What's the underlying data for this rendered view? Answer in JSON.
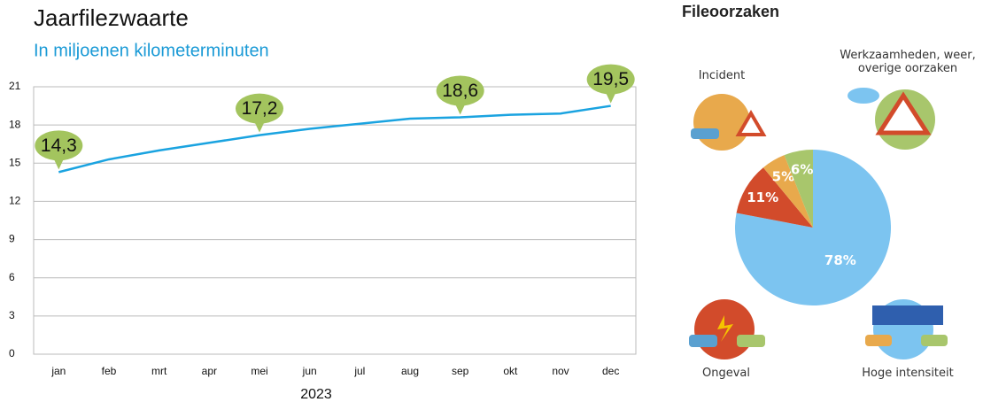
{
  "chart_data": [
    {
      "type": "line",
      "title": "Jaarfilezwaarte",
      "subtitle": "In miljoenen kilometerminuten",
      "categories": [
        "jan",
        "feb",
        "mrt",
        "apr",
        "mei",
        "jun",
        "jul",
        "aug",
        "sep",
        "okt",
        "nov",
        "dec"
      ],
      "xlabel": "2023",
      "values": [
        14.3,
        15.3,
        16.0,
        16.6,
        17.2,
        17.7,
        18.1,
        18.5,
        18.6,
        18.8,
        18.9,
        19.5
      ],
      "value_labels": [
        "14,3",
        null,
        null,
        null,
        "17,2",
        null,
        null,
        null,
        "18,6",
        null,
        null,
        "19,5"
      ],
      "color": "#1aa3e0",
      "label_color": "#a3c45e",
      "ylim": [
        0,
        21
      ],
      "yticks": [
        0,
        3,
        6,
        9,
        12,
        15,
        18,
        21
      ],
      "grid": true
    },
    {
      "type": "pie",
      "title": "Fileoorzaken",
      "categories": [
        "Hoge intensiteit",
        "Ongeval",
        "Incident",
        "Werkzaamheden, weer, overige oorzaken"
      ],
      "values": [
        78,
        11,
        5,
        6
      ],
      "value_labels": [
        "78%",
        "11%",
        "5%",
        "6%"
      ],
      "colors": [
        "#7cc4f0",
        "#d24b2b",
        "#e8a94c",
        "#a8c66c"
      ]
    }
  ]
}
